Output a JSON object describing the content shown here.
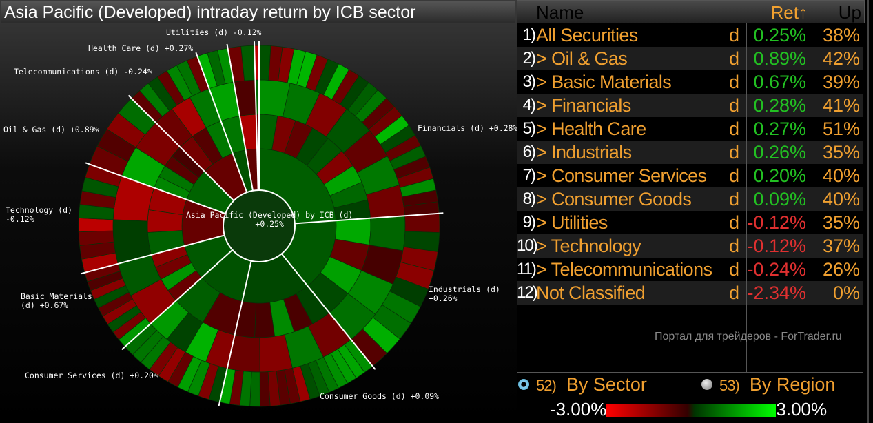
{
  "title": "Asia Pacific (Developed) intraday return by ICB sector",
  "center": {
    "name": "Asia Pacific (Developed) by ICB (d)",
    "ret": "+0.25%"
  },
  "labels": {
    "utilities": "Utilities (d) -0.12%",
    "health": "Health Care (d) +0.27%",
    "telecom": "Telecommunications (d) -0.24%",
    "oil": "Oil & Gas (d) +0.89%",
    "tech1": "Technology (d)",
    "tech2": "-0.12%",
    "basic1": "Basic Materials",
    "basic2": "(d) +0.67%",
    "consserv": "Consumer Services (d) +0.20%",
    "consgoods": "Consumer Goods (d) +0.09%",
    "ind1": "Industrials (d)",
    "ind2": "+0.26%",
    "fin": "Financials (d) +0.28%"
  },
  "table": {
    "headers": {
      "name": "Name",
      "ret": "Ret↑",
      "up": "Up"
    },
    "rows": [
      {
        "num": "1)",
        "name": "All Securities",
        "d": "d",
        "ret": "0.25%",
        "up": "38%",
        "pos": true
      },
      {
        "num": "2)",
        "name": "> Oil & Gas",
        "d": "d",
        "ret": "0.89%",
        "up": "42%",
        "pos": true
      },
      {
        "num": "3)",
        "name": "> Basic Materials",
        "d": "d",
        "ret": "0.67%",
        "up": "39%",
        "pos": true
      },
      {
        "num": "4)",
        "name": "> Financials",
        "d": "d",
        "ret": "0.28%",
        "up": "41%",
        "pos": true
      },
      {
        "num": "5)",
        "name": "> Health Care",
        "d": "d",
        "ret": "0.27%",
        "up": "51%",
        "pos": true
      },
      {
        "num": "6)",
        "name": "> Industrials",
        "d": "d",
        "ret": "0.26%",
        "up": "35%",
        "pos": true
      },
      {
        "num": "7)",
        "name": "> Consumer Services",
        "d": "d",
        "ret": "0.20%",
        "up": "40%",
        "pos": true
      },
      {
        "num": "8)",
        "name": "> Consumer Goods",
        "d": "d",
        "ret": "0.09%",
        "up": "40%",
        "pos": true
      },
      {
        "num": "9)",
        "name": "> Utilities",
        "d": "d",
        "ret": "-0.12%",
        "up": "35%",
        "pos": false
      },
      {
        "num": "10)",
        "name": "> Technology",
        "d": "d",
        "ret": "-0.12%",
        "up": "37%",
        "pos": false
      },
      {
        "num": "11)",
        "name": "> Telecommunications",
        "d": "d",
        "ret": "-0.24%",
        "up": "26%",
        "pos": false
      },
      {
        "num": "12)",
        "name": "Not Classified",
        "d": "d",
        "ret": "-2.34%",
        "up": "0%",
        "pos": false
      }
    ]
  },
  "watermark": "Портал для трейдеров - ForTrader.ru",
  "options": {
    "sector_num": "52)",
    "sector": "By Sector",
    "region_num": "53)",
    "region": "By Region"
  },
  "legend": {
    "min": "-3.00%",
    "max": "3.00%"
  },
  "colors": {
    "pos": "#22c022",
    "neg": "#e03030",
    "accent": "#f0a030"
  }
}
